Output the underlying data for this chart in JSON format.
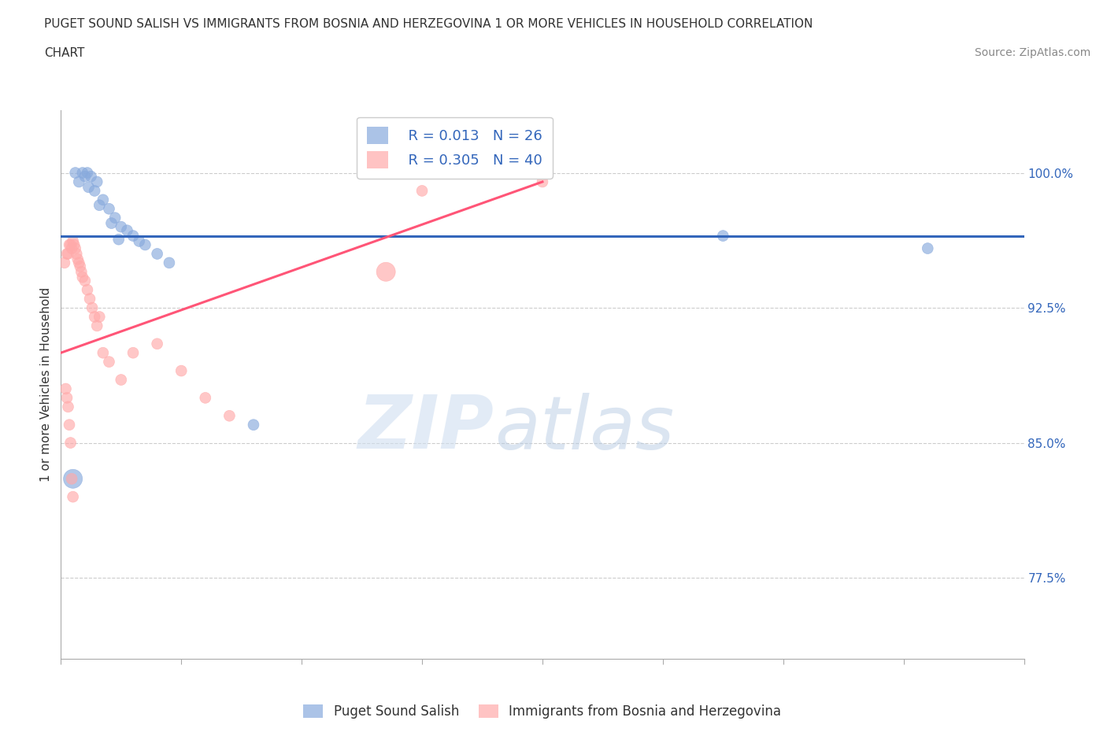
{
  "title_line1": "PUGET SOUND SALISH VS IMMIGRANTS FROM BOSNIA AND HERZEGOVINA 1 OR MORE VEHICLES IN HOUSEHOLD CORRELATION",
  "title_line2": "CHART",
  "source_text": "Source: ZipAtlas.com",
  "ylabel_label": "1 or more Vehicles in Household",
  "xlim": [
    0.0,
    80.0
  ],
  "ylim": [
    73.0,
    103.5
  ],
  "ytick_values": [
    77.5,
    85.0,
    92.5,
    100.0
  ],
  "xtick_values": [
    0.0,
    10.0,
    20.0,
    30.0,
    40.0,
    50.0,
    60.0,
    70.0,
    80.0
  ],
  "blue_color": "#88AADD",
  "pink_color": "#FFAAAA",
  "trend_blue": "#3366BB",
  "trend_pink": "#FF5577",
  "legend_r_blue": "R = 0.013",
  "legend_n_blue": "N = 26",
  "legend_r_pink": "R = 0.305",
  "legend_n_pink": "N = 40",
  "legend_label_blue": "Puget Sound Salish",
  "legend_label_pink": "Immigrants from Bosnia and Herzegovina",
  "watermark_zip": "ZIP",
  "watermark_atlas": "atlas",
  "blue_scatter_x": [
    1.2,
    1.8,
    2.2,
    2.5,
    3.0,
    3.5,
    4.0,
    4.5,
    5.0,
    5.5,
    6.0,
    7.0,
    8.0,
    9.0,
    2.0,
    2.8,
    3.2,
    4.2,
    4.8,
    1.5,
    2.3,
    55.0,
    72.0,
    1.0,
    16.0,
    6.5
  ],
  "blue_scatter_y": [
    100.0,
    100.0,
    100.0,
    99.8,
    99.5,
    98.5,
    98.0,
    97.5,
    97.0,
    96.8,
    96.5,
    96.0,
    95.5,
    95.0,
    99.8,
    99.0,
    98.2,
    97.2,
    96.3,
    99.5,
    99.2,
    96.5,
    95.8,
    83.0,
    86.0,
    96.2
  ],
  "blue_scatter_sizes": [
    100,
    100,
    100,
    100,
    100,
    100,
    100,
    100,
    100,
    100,
    100,
    100,
    100,
    100,
    100,
    100,
    100,
    100,
    100,
    100,
    100,
    100,
    100,
    300,
    100,
    100
  ],
  "pink_scatter_x": [
    0.3,
    0.5,
    0.6,
    0.7,
    0.8,
    0.9,
    1.0,
    1.1,
    1.2,
    1.3,
    1.4,
    1.5,
    1.6,
    1.7,
    1.8,
    2.0,
    2.2,
    2.4,
    2.6,
    2.8,
    3.0,
    3.2,
    3.5,
    4.0,
    5.0,
    6.0,
    8.0,
    10.0,
    12.0,
    14.0,
    0.4,
    0.5,
    0.6,
    0.7,
    0.8,
    0.9,
    1.0,
    27.0,
    30.0,
    40.0
  ],
  "pink_scatter_y": [
    95.0,
    95.5,
    95.5,
    96.0,
    96.0,
    95.8,
    96.2,
    96.0,
    95.8,
    95.5,
    95.2,
    95.0,
    94.8,
    94.5,
    94.2,
    94.0,
    93.5,
    93.0,
    92.5,
    92.0,
    91.5,
    92.0,
    90.0,
    89.5,
    88.5,
    90.0,
    90.5,
    89.0,
    87.5,
    86.5,
    88.0,
    87.5,
    87.0,
    86.0,
    85.0,
    83.0,
    82.0,
    94.5,
    99.0,
    99.5
  ],
  "pink_scatter_sizes": [
    100,
    100,
    100,
    100,
    100,
    100,
    100,
    100,
    100,
    100,
    100,
    100,
    100,
    100,
    100,
    100,
    100,
    100,
    100,
    100,
    100,
    100,
    100,
    100,
    100,
    100,
    100,
    100,
    100,
    100,
    100,
    100,
    100,
    100,
    100,
    100,
    100,
    300,
    100,
    100
  ],
  "blue_trend_y_intercept": 96.5,
  "blue_trend_slope": 0.0,
  "pink_trend_x0": 0.0,
  "pink_trend_y0": 90.0,
  "pink_trend_x1": 40.0,
  "pink_trend_y1": 99.5
}
